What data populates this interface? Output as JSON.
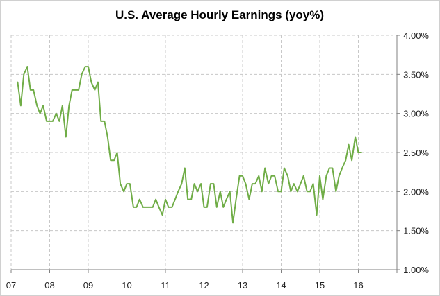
{
  "chart_data": {
    "type": "line",
    "title": "U.S. Average Hourly Earnings (yoy%)",
    "xlabel": "",
    "ylabel": "",
    "x_ticks": [
      "07",
      "08",
      "09",
      "10",
      "11",
      "12",
      "13",
      "14",
      "15",
      "16"
    ],
    "y_ticks": [
      "1.00%",
      "1.50%",
      "2.00%",
      "2.50%",
      "3.00%",
      "3.50%",
      "4.00%"
    ],
    "ylim": [
      1.0,
      4.0
    ],
    "xlim": [
      2007.0,
      2017.0
    ],
    "grid": true,
    "y_axis_position": "right",
    "series": [
      {
        "color": "#70ad47",
        "x": [
          2007.17,
          2007.25,
          2007.33,
          2007.42,
          2007.5,
          2007.58,
          2007.67,
          2007.75,
          2007.83,
          2007.92,
          2008.0,
          2008.08,
          2008.17,
          2008.25,
          2008.33,
          2008.42,
          2008.5,
          2008.58,
          2008.67,
          2008.75,
          2008.83,
          2008.92,
          2009.0,
          2009.08,
          2009.17,
          2009.25,
          2009.33,
          2009.42,
          2009.5,
          2009.58,
          2009.67,
          2009.75,
          2009.83,
          2009.92,
          2010.0,
          2010.08,
          2010.17,
          2010.25,
          2010.33,
          2010.42,
          2010.5,
          2010.58,
          2010.67,
          2010.75,
          2010.83,
          2010.92,
          2011.0,
          2011.08,
          2011.17,
          2011.25,
          2011.33,
          2011.42,
          2011.5,
          2011.58,
          2011.67,
          2011.75,
          2011.83,
          2011.92,
          2012.0,
          2012.08,
          2012.17,
          2012.25,
          2012.33,
          2012.42,
          2012.5,
          2012.58,
          2012.67,
          2012.75,
          2012.83,
          2012.92,
          2013.0,
          2013.08,
          2013.17,
          2013.25,
          2013.33,
          2013.42,
          2013.5,
          2013.58,
          2013.67,
          2013.75,
          2013.83,
          2013.92,
          2014.0,
          2014.08,
          2014.17,
          2014.25,
          2014.33,
          2014.42,
          2014.5,
          2014.58,
          2014.67,
          2014.75,
          2014.83,
          2014.92,
          2015.0,
          2015.08,
          2015.17,
          2015.25,
          2015.33,
          2015.42,
          2015.5,
          2015.58,
          2015.67,
          2015.75,
          2015.83,
          2015.92,
          2016.0,
          2016.08
        ],
        "values": [
          3.4,
          3.1,
          3.5,
          3.6,
          3.3,
          3.3,
          3.1,
          3.0,
          3.1,
          2.9,
          2.9,
          2.9,
          3.0,
          2.9,
          3.1,
          2.7,
          3.1,
          3.3,
          3.3,
          3.3,
          3.5,
          3.6,
          3.6,
          3.4,
          3.3,
          3.4,
          2.9,
          2.9,
          2.7,
          2.4,
          2.4,
          2.5,
          2.1,
          2.0,
          2.1,
          2.1,
          1.8,
          1.8,
          1.9,
          1.8,
          1.8,
          1.8,
          1.8,
          1.9,
          1.8,
          1.7,
          1.9,
          1.8,
          1.8,
          1.9,
          2.0,
          2.1,
          2.3,
          1.9,
          1.9,
          2.1,
          2.0,
          2.1,
          1.8,
          1.8,
          2.1,
          2.1,
          1.8,
          2.0,
          1.8,
          1.9,
          2.0,
          1.6,
          1.9,
          2.2,
          2.2,
          2.1,
          1.9,
          2.1,
          2.1,
          2.2,
          2.0,
          2.3,
          2.1,
          2.2,
          2.2,
          2.0,
          2.0,
          2.3,
          2.2,
          2.0,
          2.1,
          2.0,
          2.1,
          2.2,
          2.0,
          2.0,
          2.1,
          1.7,
          2.2,
          1.9,
          2.2,
          2.3,
          2.3,
          2.0,
          2.2,
          2.3,
          2.4,
          2.6,
          2.4,
          2.7,
          2.5,
          2.5
        ]
      }
    ]
  }
}
